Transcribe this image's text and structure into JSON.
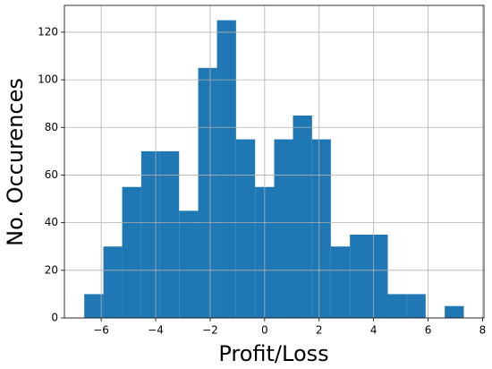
{
  "chart_data": {
    "type": "histogram",
    "x_label": "Profit/Loss",
    "y_label": "No. Occurences",
    "bins": [
      -6.62,
      -5.92,
      -5.23,
      -4.53,
      -3.84,
      -3.14,
      -2.44,
      -1.75,
      -1.05,
      -0.35,
      0.35,
      1.04,
      1.74,
      2.43,
      3.13,
      3.83,
      4.52,
      5.22,
      5.91,
      6.61,
      7.31
    ],
    "counts": [
      10,
      30,
      55,
      70,
      70,
      45,
      105,
      125,
      75,
      55,
      75,
      85,
      75,
      30,
      35,
      35,
      10,
      10,
      0,
      5
    ],
    "color": "#1f77b4",
    "xlim": [
      -7.35,
      8.05
    ],
    "ylim": [
      0,
      131.25
    ],
    "xticks": [
      {
        "value": -6,
        "label": "−6"
      },
      {
        "value": -4,
        "label": "−4"
      },
      {
        "value": -2,
        "label": "−2"
      },
      0,
      2,
      4,
      6,
      8
    ],
    "yticks": [
      0,
      20,
      40,
      60,
      80,
      100,
      120
    ],
    "grid": true
  }
}
